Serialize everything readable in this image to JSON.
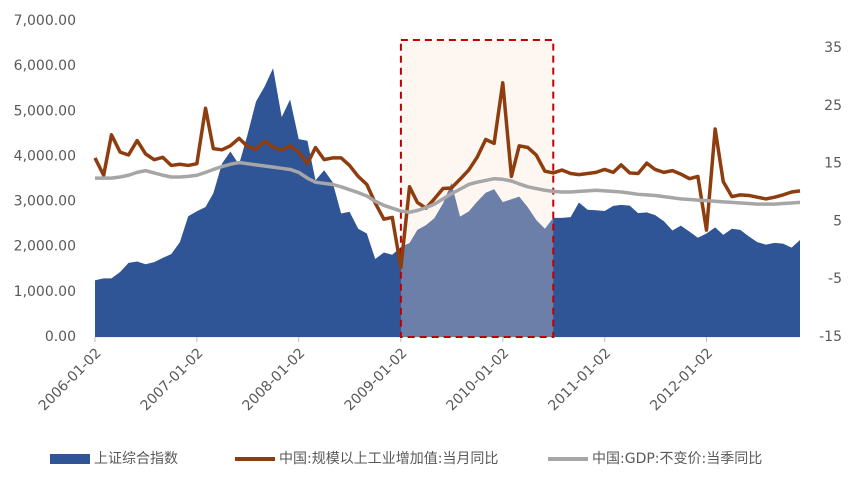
{
  "chart_data": {
    "type": "area-line",
    "x": [
      "2006-01-02",
      "2006-02-02",
      "2006-03-02",
      "2006-04-02",
      "2006-05-02",
      "2006-06-02",
      "2006-07-02",
      "2006-08-02",
      "2006-09-02",
      "2006-10-02",
      "2006-11-02",
      "2006-12-02",
      "2007-01-02",
      "2007-02-02",
      "2007-03-02",
      "2007-04-02",
      "2007-05-02",
      "2007-06-02",
      "2007-07-02",
      "2007-08-02",
      "2007-09-02",
      "2007-10-02",
      "2007-11-02",
      "2007-12-02",
      "2008-01-02",
      "2008-02-02",
      "2008-03-02",
      "2008-04-02",
      "2008-05-02",
      "2008-06-02",
      "2008-07-02",
      "2008-08-02",
      "2008-09-02",
      "2008-10-02",
      "2008-11-02",
      "2008-12-02",
      "2009-01-02",
      "2009-02-02",
      "2009-03-02",
      "2009-04-02",
      "2009-05-02",
      "2009-06-02",
      "2009-07-02",
      "2009-08-02",
      "2009-09-02",
      "2009-10-02",
      "2009-11-02",
      "2009-12-02",
      "2010-01-02",
      "2010-02-02",
      "2010-03-02",
      "2010-04-02",
      "2010-05-02",
      "2010-06-02",
      "2010-07-02",
      "2010-08-02",
      "2010-09-02",
      "2010-10-02",
      "2010-11-02",
      "2010-12-02",
      "2011-01-02",
      "2011-02-02",
      "2011-03-02",
      "2011-04-02",
      "2011-05-02",
      "2011-06-02",
      "2011-07-02",
      "2011-08-02",
      "2011-09-02",
      "2011-10-02",
      "2011-11-02",
      "2011-12-02",
      "2012-01-02",
      "2012-02-02",
      "2012-03-02",
      "2012-04-02",
      "2012-05-02",
      "2012-06-02",
      "2012-07-02",
      "2012-08-02",
      "2012-09-02",
      "2012-10-02",
      "2012-11-02",
      "2012-12-02"
    ],
    "series": [
      {
        "name": "上证综合指数",
        "color": "#2f5597",
        "kind": "area",
        "values": [
          1258,
          1299,
          1298,
          1440,
          1641,
          1672,
          1612,
          1658,
          1752,
          1837,
          2099,
          2675,
          2786,
          2881,
          3183,
          3841,
          4109,
          3820,
          4471,
          5218,
          5552,
          5954,
          4871,
          5262,
          4383,
          4348,
          3472,
          3693,
          3433,
          2736,
          2775,
          2397,
          2293,
          1729,
          1871,
          1821,
          1990,
          2082,
          2373,
          2477,
          2632,
          2959,
          3412,
          2667,
          2779,
          2996,
          3195,
          3277,
          2989,
          3051,
          3110,
          2871,
          2592,
          2398,
          2638,
          2639,
          2656,
          2979,
          2820,
          2808,
          2790,
          2905,
          2928,
          2911,
          2743,
          2762,
          2701,
          2567,
          2359,
          2468,
          2333,
          2199,
          2293,
          2428,
          2263,
          2397,
          2373,
          2225,
          2103,
          2047,
          2086,
          2069,
          1980,
          2150
        ]
      },
      {
        "name": "中国:规模以上工业增加值:当月同比",
        "color": "#8e3d0f",
        "kind": "line",
        "axis": "y2",
        "values": [
          16,
          13,
          20,
          17,
          16.5,
          19,
          16.7,
          15.7,
          16.1,
          14.7,
          14.9,
          14.7,
          15,
          24.6,
          17.6,
          17.4,
          18.1,
          19.4,
          18,
          17.5,
          18.9,
          17.9,
          17.3,
          18.1,
          17,
          15,
          17.8,
          15.7,
          16,
          16,
          14.7,
          12.8,
          11.4,
          8.2,
          5.4,
          5.7,
          -3,
          11,
          8.3,
          7.3,
          8.9,
          10.7,
          10.8,
          12.3,
          13.9,
          16.1,
          19.2,
          18.5,
          29,
          12.8,
          18.1,
          17.8,
          16.5,
          13.7,
          13.4,
          13.9,
          13.3,
          13.1,
          13.3,
          13.5,
          14,
          13.5,
          14.8,
          13.4,
          13.3,
          15.1,
          14,
          13.5,
          13.8,
          13.2,
          12.4,
          12.8,
          3.5,
          21,
          11.9,
          9.3,
          9.6,
          9.5,
          9.2,
          8.9,
          9.2,
          9.6,
          10.1,
          10.3
        ]
      },
      {
        "name": "中国:GDP:不变价:当季同比",
        "color": "#a6a6a6",
        "kind": "line",
        "axis": "y2",
        "values": [
          12.5,
          12.5,
          12.5,
          12.7,
          13,
          13.5,
          13.8,
          13.4,
          13,
          12.7,
          12.7,
          12.8,
          13,
          13.5,
          14,
          14.5,
          14.9,
          15.2,
          15,
          14.8,
          14.6,
          14.4,
          14.2,
          14,
          13.5,
          12.5,
          11.8,
          11.6,
          11.4,
          11,
          10.5,
          10,
          9.4,
          8.5,
          7.8,
          7.3,
          6.8,
          6.6,
          6.9,
          7.4,
          8,
          8.9,
          9.8,
          10.6,
          11.4,
          11.8,
          12.1,
          12.4,
          12.3,
          12,
          11.5,
          11,
          10.7,
          10.4,
          10.2,
          10.1,
          10.1,
          10.2,
          10.3,
          10.4,
          10.3,
          10.2,
          10.1,
          9.9,
          9.7,
          9.6,
          9.5,
          9.3,
          9.1,
          8.9,
          8.8,
          8.7,
          8.6,
          8.5,
          8.4,
          8.3,
          8.2,
          8.1,
          8.0,
          8.0,
          8.0,
          8.1,
          8.2,
          8.3
        ]
      }
    ],
    "xlim": [
      "2006-01-02",
      "2012-12-02"
    ],
    "xticks": [
      "2006-01-02",
      "2007-01-02",
      "2008-01-02",
      "2009-01-02",
      "2010-01-02",
      "2011-01-02",
      "2012-01-02"
    ],
    "ylim": [
      0,
      7000
    ],
    "yticks": [
      {
        "value": 0,
        "label": "0.00"
      },
      {
        "value": 1000,
        "label": "1,000.00"
      },
      {
        "value": 2000,
        "label": "2,000.00"
      },
      {
        "value": 3000,
        "label": "3,000.00"
      },
      {
        "value": 4000,
        "label": "4,000.00"
      },
      {
        "value": 5000,
        "label": "5,000.00"
      },
      {
        "value": 6000,
        "label": "6,000.00"
      },
      {
        "value": 7000,
        "label": "7,000.00"
      }
    ],
    "y2lim": [
      -15,
      39.7
    ],
    "y2ticks": [
      -15,
      -5,
      5,
      15,
      25,
      35
    ],
    "highlight": [
      "2009-01-02",
      "2010-07-02"
    ],
    "legend": "bottom"
  }
}
